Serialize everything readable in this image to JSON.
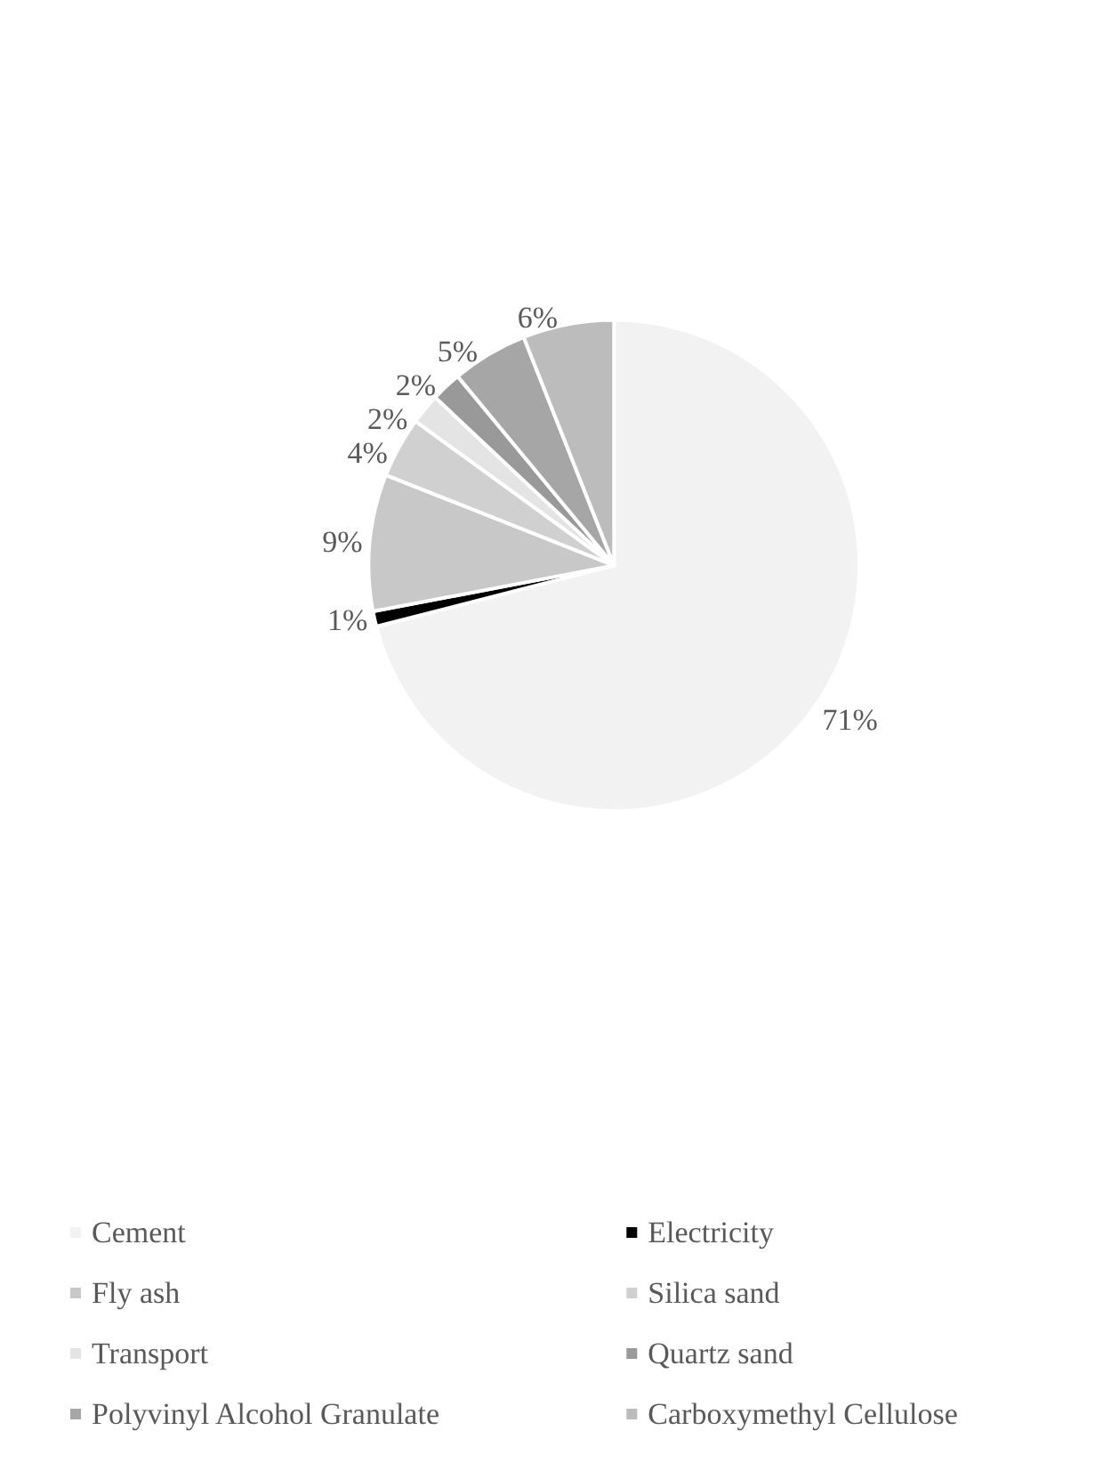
{
  "chart_data": {
    "type": "pie",
    "categories": [
      "Cement",
      "Electricity",
      "Fly ash",
      "Silica sand",
      "Transport",
      "Quartz sand",
      "Polyvinyl Alcohol Granulate",
      "Carboxymethyl Cellulose"
    ],
    "values": [
      71,
      1,
      9,
      4,
      2,
      2,
      5,
      6
    ],
    "value_labels": [
      "71%",
      "1%",
      "9%",
      "4%",
      "2%",
      "2%",
      "5%",
      "6%"
    ],
    "colors": [
      "#f2f2f2",
      "#000000",
      "#c8c8c8",
      "#d0d0d0",
      "#e4e4e4",
      "#999999",
      "#a6a6a6",
      "#bcbcbc"
    ],
    "legend": "bottom"
  }
}
